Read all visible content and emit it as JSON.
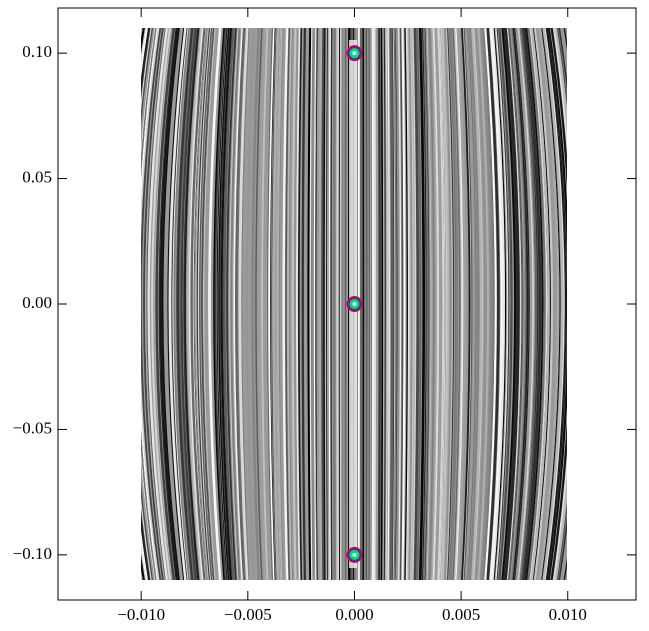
{
  "chart_data": {
    "type": "scatter",
    "x": [
      0.0,
      0.0,
      0.0
    ],
    "values": [
      0.1,
      0.0,
      -0.1
    ],
    "color": "#00e070",
    "xlim": [
      -0.0139,
      0.0132
    ],
    "ylim": [
      -0.118,
      0.118
    ],
    "xticks": [
      {
        "value": -0.01,
        "label": "−0.010"
      },
      {
        "value": -0.005,
        "label": "−0.005"
      },
      {
        "value": 0.0,
        "label": "0.000"
      },
      {
        "value": 0.005,
        "label": "0.005"
      },
      {
        "value": 0.01,
        "label": "0.010"
      }
    ],
    "yticks": [
      {
        "value": -0.1,
        "label": "−0.10"
      },
      {
        "value": -0.05,
        "label": "−0.05"
      },
      {
        "value": 0.0,
        "label": "0.00"
      },
      {
        "value": 0.05,
        "label": "0.05"
      },
      {
        "value": 0.1,
        "label": "0.10"
      }
    ]
  }
}
